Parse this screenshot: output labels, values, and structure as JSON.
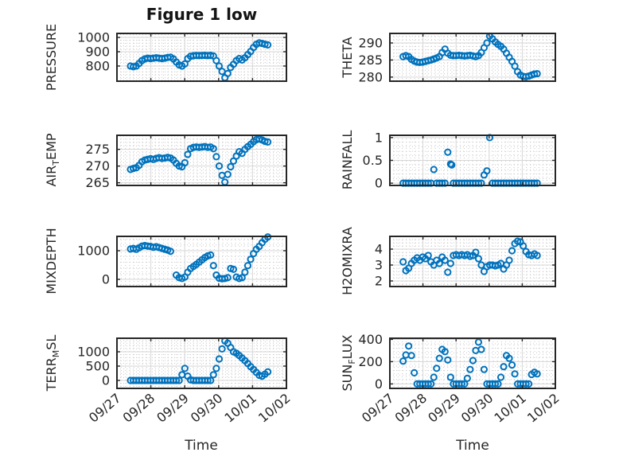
{
  "figure": {
    "title": "Figure 1 low",
    "background": "#ffffff",
    "text_color": "#262626",
    "axis_color": "#262626",
    "grid_color": "#d6d6d6",
    "minor_grid_color": "#c8c8c8",
    "marker_color": "#0072BD"
  },
  "chart_data": {
    "type": "scatter",
    "title": "Figure 1 low",
    "xlabel": "Time",
    "marker": "hollow-circle",
    "legend": "none",
    "grid": "major solid + minor dotted",
    "x_unit": "days since 09/27 00:00",
    "xlim": [
      0,
      5
    ],
    "x_minor_step": 0.125,
    "xticks": [
      {
        "v": 0,
        "label": "09/27"
      },
      {
        "v": 1,
        "label": "09/28"
      },
      {
        "v": 2,
        "label": "09/29"
      },
      {
        "v": 3,
        "label": "09/30"
      },
      {
        "v": 4,
        "label": "10/01"
      },
      {
        "v": 5,
        "label": "10/02"
      }
    ],
    "x": [
      0.4,
      0.484,
      0.569,
      0.653,
      0.738,
      0.822,
      0.906,
      0.991,
      1.075,
      1.16,
      1.244,
      1.328,
      1.413,
      1.497,
      1.581,
      1.666,
      1.75,
      1.835,
      1.919,
      2.003,
      2.088,
      2.172,
      2.257,
      2.341,
      2.425,
      2.51,
      2.594,
      2.679,
      2.763,
      2.847,
      2.932,
      3.016,
      3.101,
      3.185,
      3.269,
      3.354,
      3.438,
      3.523,
      3.607,
      3.691,
      3.776,
      3.86,
      3.945,
      4.029,
      4.113,
      4.198,
      4.282,
      4.367,
      4.451
    ],
    "subplots": [
      {
        "id": "pressure",
        "ylabel": {
          "pre": "PRESSURE",
          "sub": "",
          "post": ""
        },
        "ylim": [
          694,
          1028
        ],
        "yticks": [
          800,
          900,
          1000
        ],
        "y_minor_step": 20,
        "y": [
          800,
          795,
          800,
          818,
          838,
          850,
          855,
          852,
          855,
          858,
          855,
          852,
          855,
          860,
          862,
          850,
          828,
          808,
          800,
          815,
          852,
          868,
          872,
          874,
          873,
          874,
          875,
          873,
          875,
          870,
          838,
          800,
          762,
          718,
          748,
          790,
          812,
          838,
          852,
          842,
          858,
          880,
          902,
          930,
          952,
          962,
          958,
          952,
          948
        ]
      },
      {
        "id": "theta",
        "ylabel": {
          "pre": "THETA",
          "sub": "",
          "post": ""
        },
        "ylim": [
          278.8,
          292.8
        ],
        "yticks": [
          280,
          285,
          290
        ],
        "y_minor_step": 1,
        "y": [
          286.0,
          286.3,
          286.0,
          285.2,
          284.7,
          284.4,
          284.3,
          284.4,
          284.6,
          284.8,
          285.0,
          285.3,
          285.6,
          286.0,
          287.2,
          288.2,
          287.0,
          286.4,
          286.3,
          286.3,
          286.4,
          286.3,
          286.2,
          286.3,
          286.4,
          286.2,
          286.0,
          286.3,
          287.2,
          288.6,
          290.0,
          292.0,
          291.2,
          290.3,
          289.6,
          289.0,
          288.2,
          287.0,
          285.8,
          284.6,
          283.2,
          281.6,
          280.6,
          280.2,
          280.1,
          280.3,
          280.6,
          280.9,
          281.0
        ]
      },
      {
        "id": "air-temp",
        "ylabel": {
          "pre": "AIR",
          "sub": "T",
          "post": "EMP"
        },
        "ylim": [
          264.2,
          279.2
        ],
        "yticks": [
          265,
          270,
          275
        ],
        "y_minor_step": 1,
        "y": [
          269.0,
          269.3,
          269.5,
          270.2,
          271.3,
          271.8,
          272.0,
          272.2,
          272.0,
          272.3,
          272.5,
          272.3,
          272.4,
          272.6,
          272.4,
          271.8,
          270.8,
          270.0,
          269.8,
          271.0,
          273.5,
          275.2,
          275.6,
          275.7,
          275.6,
          275.7,
          275.8,
          275.6,
          275.7,
          275.2,
          272.8,
          270.0,
          267.2,
          265.2,
          267.5,
          269.8,
          271.5,
          273.0,
          274.3,
          273.8,
          275.0,
          275.8,
          276.5,
          277.3,
          277.9,
          278.1,
          277.8,
          277.4,
          277.2
        ]
      },
      {
        "id": "rainfall",
        "ylabel": {
          "pre": "RAINFALL",
          "sub": "",
          "post": ""
        },
        "ylim": [
          -0.05,
          1.05
        ],
        "yticks": [
          0,
          0.5,
          1
        ],
        "y_minor_step": 0.1,
        "y": [
          0,
          0,
          0,
          0,
          0,
          0,
          0,
          0,
          0,
          0,
          0,
          0.3,
          0,
          0,
          0,
          0,
          0.68,
          0.42,
          0,
          0,
          0,
          0,
          0,
          0,
          0,
          0,
          0,
          0,
          0,
          0.18,
          0.27,
          1.0,
          0,
          0,
          0,
          0,
          0,
          0,
          0,
          0,
          0,
          0,
          0,
          0,
          0,
          0,
          0,
          0,
          0
        ],
        "extra_points": [
          [
            1.87,
            0.4
          ]
        ]
      },
      {
        "id": "mixdepth",
        "ylabel": {
          "pre": "MIXDEPTH",
          "sub": "",
          "post": ""
        },
        "ylim": [
          -250,
          1500
        ],
        "yticks": [
          0,
          1000
        ],
        "y_minor_step": 200,
        "y": [
          1060,
          1080,
          1050,
          1100,
          1160,
          1180,
          1160,
          1150,
          1120,
          1140,
          1110,
          1080,
          1050,
          1020,
          980,
          null,
          150,
          60,
          30,
          80,
          250,
          380,
          450,
          520,
          600,
          680,
          760,
          820,
          850,
          480,
          150,
          40,
          20,
          30,
          60,
          380,
          350,
          80,
          30,
          60,
          250,
          480,
          700,
          900,
          1050,
          1150,
          1280,
          1400,
          1480
        ]
      },
      {
        "id": "h2omixra",
        "ylabel": {
          "pre": "H2OMIXRA",
          "sub": "",
          "post": ""
        },
        "ylim": [
          1.65,
          4.8
        ],
        "yticks": [
          2,
          3,
          4
        ],
        "y_minor_step": 0.2,
        "y": [
          3.2,
          2.65,
          2.8,
          3.1,
          3.3,
          3.45,
          3.3,
          3.5,
          3.4,
          3.6,
          3.2,
          3.0,
          3.3,
          3.1,
          3.5,
          3.3,
          2.55,
          3.1,
          3.6,
          3.65,
          3.6,
          3.65,
          3.6,
          3.65,
          3.55,
          3.6,
          3.8,
          3.4,
          3.0,
          2.6,
          2.9,
          3.0,
          3.0,
          2.95,
          3.0,
          3.1,
          2.75,
          3.0,
          3.3,
          3.9,
          4.35,
          4.5,
          4.45,
          4.2,
          3.85,
          3.65,
          3.6,
          3.7,
          3.6
        ]
      },
      {
        "id": "terr-msl",
        "ylabel": {
          "pre": "TERR",
          "sub": "M",
          "post": "SL"
        },
        "ylim": [
          -278,
          1472
        ],
        "yticks": [
          0,
          500,
          1000
        ],
        "y_minor_step": 100,
        "y": [
          0,
          0,
          0,
          0,
          0,
          0,
          0,
          0,
          0,
          0,
          0,
          0,
          0,
          0,
          0,
          0,
          0,
          0,
          200,
          420,
          150,
          20,
          0,
          0,
          0,
          0,
          0,
          0,
          0,
          200,
          420,
          750,
          1100,
          1380,
          1300,
          1150,
          1000,
          950,
          870,
          780,
          690,
          590,
          480,
          380,
          280,
          180,
          150,
          220,
          300
        ]
      },
      {
        "id": "sun-flux",
        "ylabel": {
          "pre": "SUN",
          "sub": "F",
          "post": "LUX"
        },
        "ylim": [
          -40,
          410
        ],
        "yticks": [
          0,
          200,
          400
        ],
        "y_minor_step": 40,
        "y": [
          205,
          260,
          340,
          255,
          100,
          0,
          0,
          0,
          0,
          0,
          0,
          60,
          140,
          230,
          310,
          290,
          215,
          60,
          0,
          0,
          0,
          0,
          0,
          50,
          130,
          210,
          300,
          375,
          310,
          130,
          0,
          0,
          0,
          0,
          0,
          60,
          155,
          255,
          230,
          170,
          90,
          0,
          0,
          0,
          0,
          0,
          85,
          105,
          90
        ]
      }
    ]
  }
}
